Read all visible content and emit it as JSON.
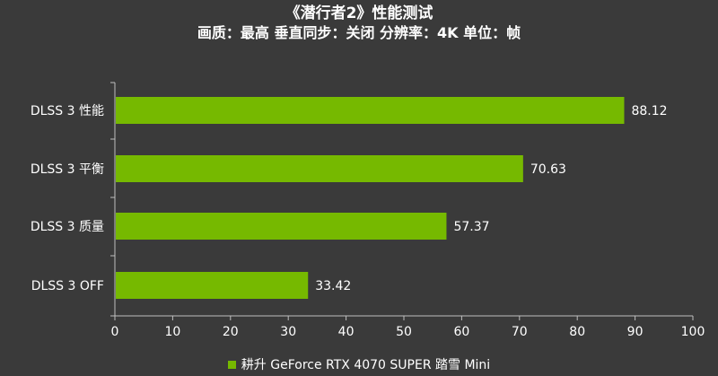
{
  "header": {
    "title": "《潜行者2》性能测试",
    "subtitle": "画质：最高 垂直同步：关闭 分辨率：4K 单位：帧"
  },
  "chart_data": {
    "type": "bar",
    "orientation": "horizontal",
    "title": "《潜行者2》性能测试",
    "subtitle": "画质：最高 垂直同步：关闭 分辨率：4K 单位：帧",
    "categories": [
      "DLSS 3 性能",
      "DLSS 3 平衡",
      "DLSS 3 质量",
      "DLSS 3 OFF"
    ],
    "series": [
      {
        "name": "耕升 GeForce RTX 4070 SUPER 踏雪 Mini",
        "values": [
          88.12,
          70.63,
          57.37,
          33.42
        ],
        "color": "#76b900"
      }
    ],
    "value_labels": [
      "88.12",
      "70.63",
      "57.37",
      "33.42"
    ],
    "xlim": [
      0,
      100
    ],
    "xticks": [
      0,
      10,
      20,
      30,
      40,
      50,
      60,
      70,
      80,
      90,
      100
    ],
    "xlabel": "",
    "ylabel": "",
    "grid": false,
    "legend_position": "bottom"
  }
}
